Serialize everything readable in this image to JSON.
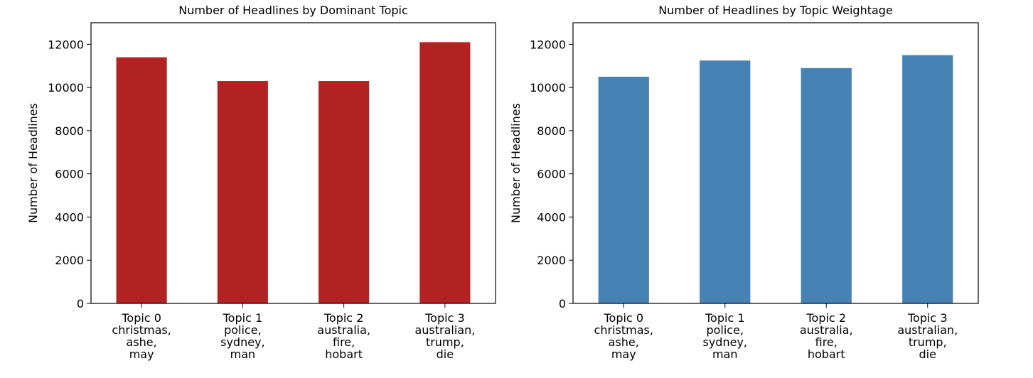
{
  "chart_data": [
    {
      "type": "bar",
      "title": "Number of Headlines by Dominant Topic",
      "xlabel": "",
      "ylabel": "Number of Headlines",
      "categories": [
        [
          "Topic 0",
          "christmas,",
          "ashe,",
          "may"
        ],
        [
          "Topic 1",
          "police,",
          "sydney,",
          "man"
        ],
        [
          "Topic 2",
          "australia,",
          "fire,",
          "hobart"
        ],
        [
          "Topic 3",
          "australian,",
          "trump,",
          "die"
        ]
      ],
      "values": [
        11400,
        10300,
        10300,
        12100
      ],
      "ylim": [
        0,
        13000
      ],
      "yticks": [
        0,
        2000,
        4000,
        6000,
        8000,
        10000,
        12000
      ],
      "color": "#b22222",
      "grid": false
    },
    {
      "type": "bar",
      "title": "Number of Headlines by Topic Weightage",
      "xlabel": "",
      "ylabel": "Number of Headlines",
      "categories": [
        [
          "Topic 0",
          "christmas,",
          "ashe,",
          "may"
        ],
        [
          "Topic 1",
          "police,",
          "sydney,",
          "man"
        ],
        [
          "Topic 2",
          "australia,",
          "fire,",
          "hobart"
        ],
        [
          "Topic 3",
          "australian,",
          "trump,",
          "die"
        ]
      ],
      "values": [
        10500,
        11250,
        10900,
        11500
      ],
      "ylim": [
        0,
        13000
      ],
      "yticks": [
        0,
        2000,
        4000,
        6000,
        8000,
        10000,
        12000
      ],
      "color": "#4682b4",
      "grid": false
    }
  ]
}
